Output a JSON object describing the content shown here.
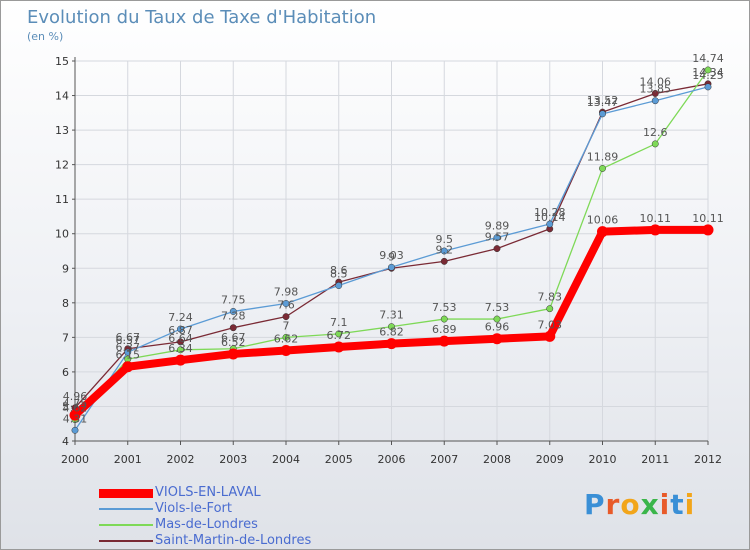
{
  "chart_data": {
    "type": "line",
    "title": "Evolution du Taux de Taxe d'Habitation",
    "subtitle": "(en %)",
    "x": [
      "2000",
      "2001",
      "2002",
      "2003",
      "2004",
      "2005",
      "2006",
      "2007",
      "2008",
      "2009",
      "2010",
      "2011",
      "2012"
    ],
    "ylim": [
      4,
      15
    ],
    "yticks": [
      4,
      5,
      6,
      7,
      8,
      9,
      10,
      11,
      12,
      13,
      14,
      15
    ],
    "grid": true,
    "legend_position": "bottom-left",
    "series": [
      {
        "name": "VIOLS-EN-LAVAL",
        "color": "#ff0000",
        "values": [
          4.75,
          6.15,
          6.34,
          6.52,
          6.62,
          6.72,
          6.82,
          6.89,
          6.96,
          7.03,
          10.06,
          10.11,
          10.11
        ],
        "labels": [
          "4.75",
          "6.15",
          "6.34",
          "6.52",
          "6.62",
          "6.72",
          "6.82",
          "6.89",
          "6.96",
          "7.03",
          "10.06",
          "10.11",
          "10.11"
        ]
      },
      {
        "name": "Viols-le-Fort",
        "color": "#5b9bd5",
        "values": [
          4.31,
          6.57,
          7.24,
          7.75,
          7.98,
          8.5,
          9.03,
          9.5,
          9.89,
          10.28,
          13.47,
          13.85,
          14.25
        ],
        "labels": [
          "4.31",
          "6.57",
          "7.24",
          "7.75",
          "7.98",
          "8.5",
          "9.03",
          "9.5",
          "9.89",
          "10.28",
          "13.47",
          "13.85",
          "14.25"
        ]
      },
      {
        "name": "Mas-de-Londres",
        "color": "#7ed957",
        "values": [
          4.62,
          6.37,
          6.64,
          6.67,
          7.0,
          7.1,
          7.31,
          7.53,
          7.53,
          7.83,
          11.89,
          12.6,
          14.74
        ],
        "labels": [
          "4.62",
          "6.37",
          "6.64",
          "6.67",
          "7",
          "7.1",
          "7.31",
          "7.53",
          "7.53",
          "7.83",
          "11.89",
          "12.6",
          "14.74"
        ]
      },
      {
        "name": "Saint-Martin-de-Londres",
        "color": "#7a2a35",
        "values": [
          4.96,
          6.67,
          6.87,
          7.28,
          7.6,
          8.6,
          9.0,
          9.2,
          9.57,
          10.14,
          13.52,
          14.06,
          14.34
        ],
        "labels": [
          "4.96",
          "6.67",
          "6.87",
          "7.28",
          "7.6",
          "8.6",
          "9",
          "9.2",
          "9.57",
          "10.14",
          "13.52",
          "14.06",
          "14.34"
        ]
      }
    ]
  },
  "brand": {
    "letters": [
      "P",
      "r",
      "o",
      "x",
      "i",
      "t",
      "i"
    ],
    "colors": [
      "#3a8fd6",
      "#e85a2a",
      "#f2a51a",
      "#3ab54a",
      "#e85a2a",
      "#3a8fd6",
      "#f2a51a"
    ]
  }
}
